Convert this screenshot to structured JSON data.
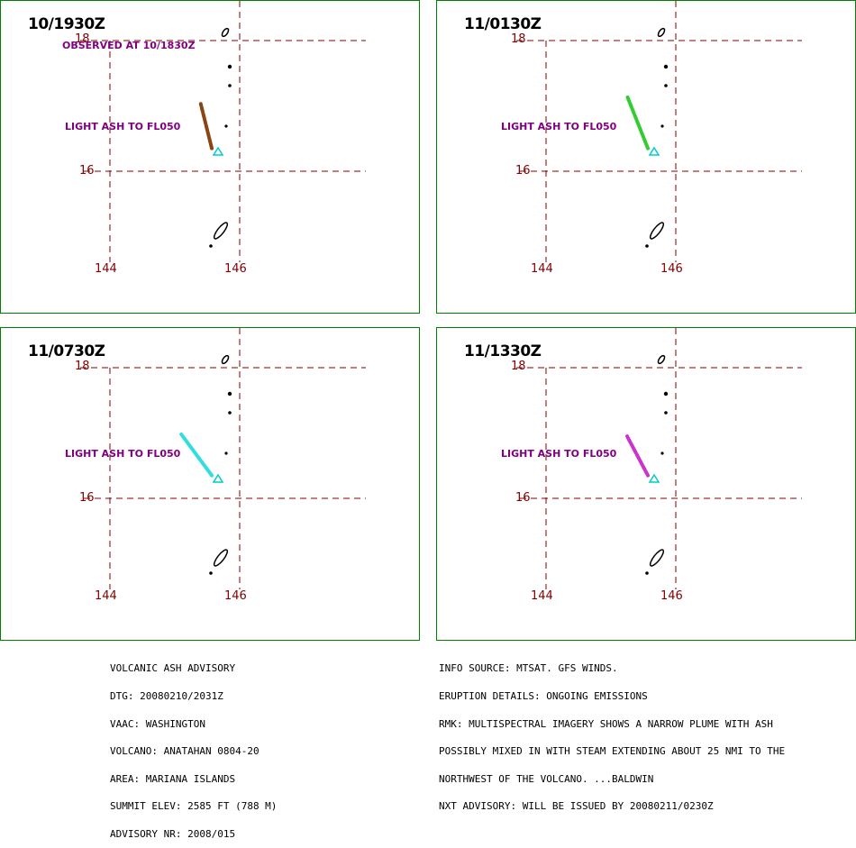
{
  "panels": [
    {
      "time": "10/1930Z",
      "observed": "OBSERVED AT 10/1830Z",
      "ash_label": "LIGHT ASH TO FL050",
      "plume_color": "#8B4513",
      "plume": {
        "lat": [
          16.35,
          17.03
        ],
        "lon": [
          145.57,
          145.4
        ]
      }
    },
    {
      "time": "11/0130Z",
      "ash_label": "LIGHT ASH TO FL050",
      "plume_color": "#33CC33",
      "plume": {
        "lat": [
          16.35,
          17.15
        ],
        "lon": [
          145.57,
          145.25
        ]
      }
    },
    {
      "time": "11/0730Z",
      "ash_label": "LIGHT ASH TO FL050",
      "plume_color": "#33DDDD",
      "plume": {
        "lat": [
          16.35,
          16.98
        ],
        "lon": [
          145.57,
          145.1
        ]
      }
    },
    {
      "time": "11/1330Z",
      "ash_label": "LIGHT ASH TO FL050",
      "plume_color": "#CC33CC",
      "plume": {
        "lat": [
          16.35,
          16.95
        ],
        "lon": [
          145.57,
          145.25
        ]
      }
    }
  ],
  "map": {
    "lat_labels": [
      "18",
      "16"
    ],
    "lon_labels": [
      "144",
      "146"
    ],
    "grid_color": "#800000",
    "label_color": "#800000",
    "text_color": "#800080",
    "volcano_marker_color": "#00CCCC",
    "border_color": "#008000"
  },
  "advisory": {
    "left_lines": [
      "VOLCANIC ASH ADVISORY",
      "DTG: 20080210/2031Z",
      "VAAC: WASHINGTON",
      "VOLCANO: ANATAHAN 0804-20",
      "AREA: MARIANA ISLANDS",
      "SUMMIT ELEV: 2585 FT (788 M)",
      "ADVISORY NR: 2008/015"
    ],
    "right_lines": [
      "INFO SOURCE: MTSAT. GFS WINDS.",
      "ERUPTION DETAILS: ONGOING EMISSIONS",
      "RMK: MULTISPECTRAL IMAGERY SHOWS A NARROW PLUME WITH ASH",
      "POSSIBLY MIXED IN WITH STEAM EXTENDING ABOUT 25 NMI TO THE",
      "NORTHWEST OF THE VOLCANO. ...BALDWIN",
      "NXT ADVISORY: WILL BE ISSUED BY 20080211/0230Z"
    ]
  }
}
